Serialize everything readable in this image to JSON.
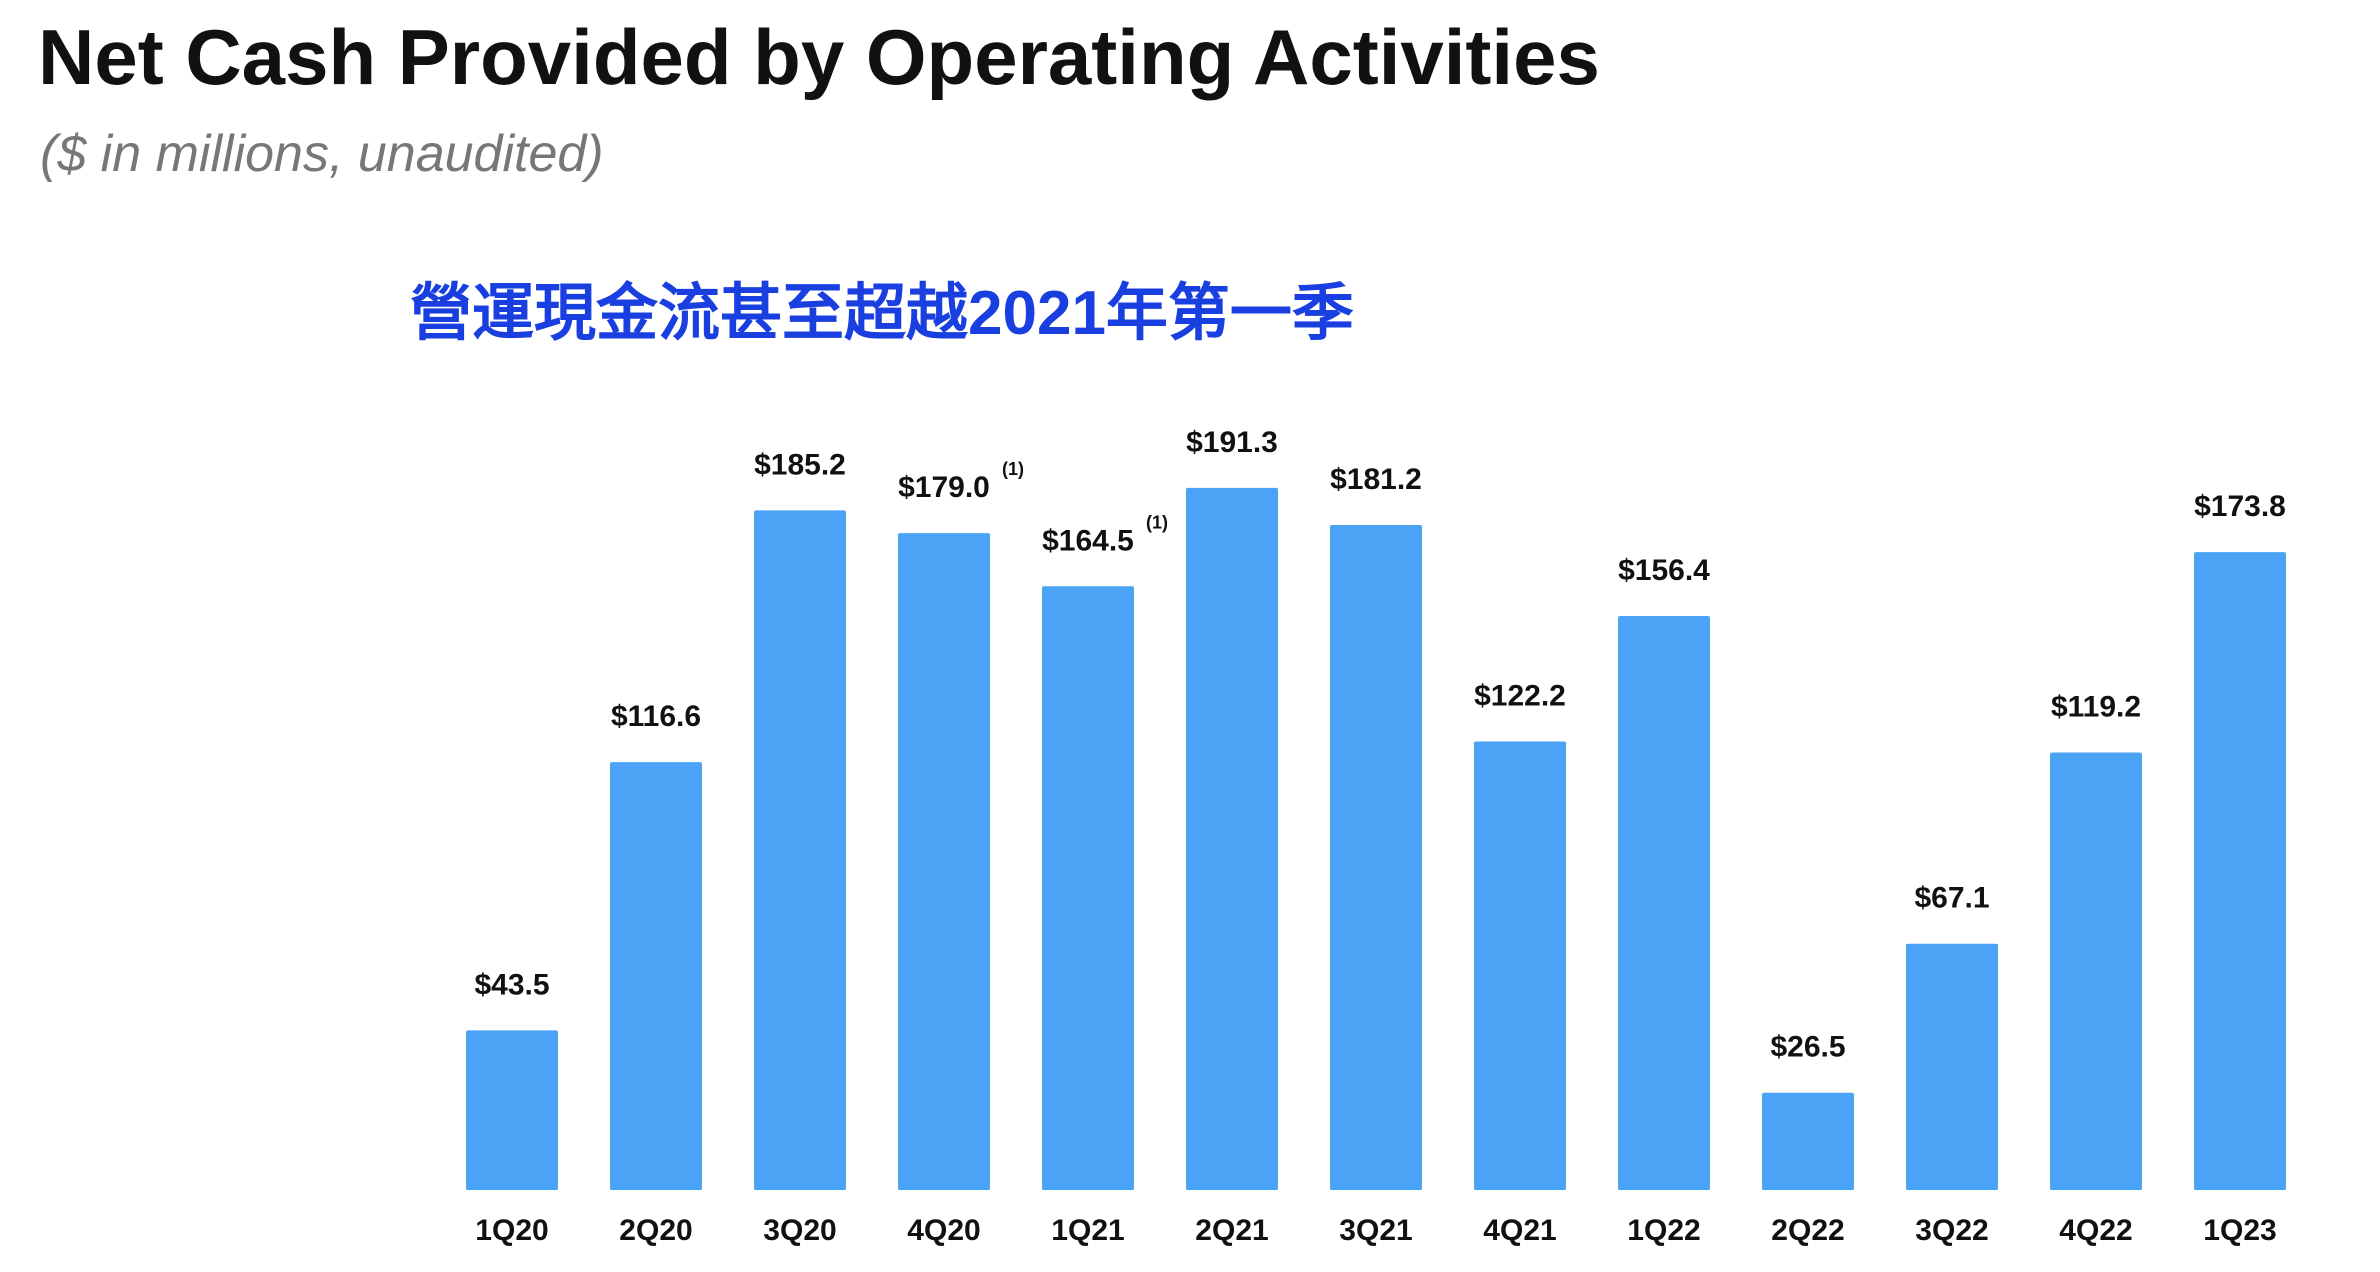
{
  "header": {
    "title": "Net Cash Provided by Operating Activities",
    "subtitle": "($ in millions, unaudited)",
    "annotation": "營運現金流甚至超越2021年第一季"
  },
  "chart_data": {
    "type": "bar",
    "title": "Net Cash Provided by Operating Activities",
    "subtitle": "($ in millions, unaudited)",
    "categories": [
      "1Q20",
      "2Q20",
      "3Q20",
      "4Q20",
      "1Q21",
      "2Q21",
      "3Q21",
      "4Q21",
      "1Q22",
      "2Q22",
      "3Q22",
      "4Q22",
      "1Q23"
    ],
    "values": [
      43.5,
      116.6,
      185.2,
      179.0,
      164.5,
      191.3,
      181.2,
      122.2,
      156.4,
      26.5,
      67.1,
      119.2,
      173.8
    ],
    "value_labels": [
      "$43.5",
      "$116.6",
      "$185.2",
      "$179.0",
      "$164.5",
      "$191.3",
      "$181.2",
      "$122.2",
      "$156.4",
      "$26.5",
      "$67.1",
      "$119.2",
      "$173.8"
    ],
    "footnotes": [
      "",
      "",
      "",
      "(1)",
      "(1)",
      "",
      "",
      "",
      "",
      "",
      "",
      "",
      ""
    ],
    "ylim": [
      0,
      200
    ],
    "grid": false,
    "legend": "none",
    "bar_color": "#4aa3f5",
    "xlabel": "",
    "ylabel": ""
  }
}
